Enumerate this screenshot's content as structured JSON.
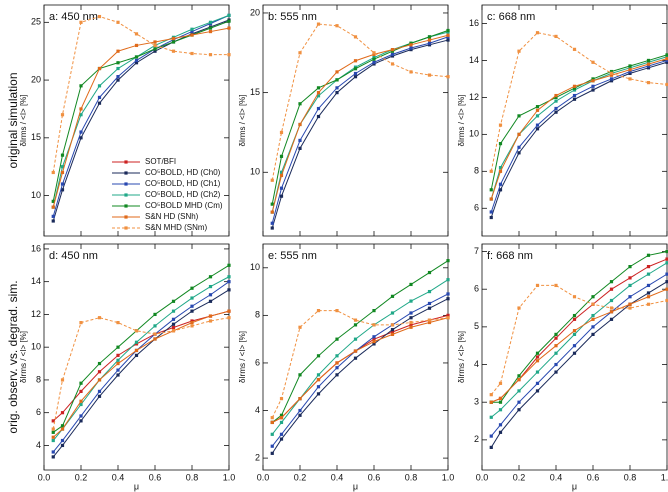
{
  "row_labels": [
    "original simulation",
    "orig. observ. vs. degrad. sim."
  ],
  "legend": [
    {
      "name": "SOT/BFI",
      "color": "#cc2222",
      "dash": false
    },
    {
      "name": "CO⁵BOLD, HD (Ch0)",
      "color": "#1a2a5a",
      "dash": false
    },
    {
      "name": "CO⁵BOLD, HD (Ch1)",
      "color": "#2848b0",
      "dash": false
    },
    {
      "name": "CO⁵BOLD, HD (Ch2)",
      "color": "#20a888",
      "dash": false
    },
    {
      "name": "CO⁵BOLD MHD (Cm)",
      "color": "#118822",
      "dash": false
    },
    {
      "name": "S&N HD (SNh)",
      "color": "#e06a1a",
      "dash": false
    },
    {
      "name": "S&N MHD (SNm)",
      "color": "#f09040",
      "dash": true
    }
  ],
  "chart_data": [
    {
      "type": "line",
      "title": "a: 450 nm",
      "y_label": "δIrms / <I> [%]",
      "x": [
        0.05,
        0.1,
        0.2,
        0.3,
        0.4,
        0.5,
        0.6,
        0.7,
        0.8,
        0.9,
        1.0
      ],
      "xlim": [
        0,
        1
      ],
      "ylim": [
        6.5,
        26.5
      ],
      "xticks": [
        0,
        0.2,
        0.4,
        0.6,
        0.8,
        1.0
      ],
      "yticks": [
        10,
        15,
        20,
        25
      ],
      "series": [
        {
          "color": "#1a2a5a",
          "values": [
            7.8,
            10.5,
            15,
            18,
            20,
            21.5,
            22.5,
            23.3,
            24,
            24.6,
            25.2
          ]
        },
        {
          "color": "#2848b0",
          "values": [
            8.2,
            11,
            15.5,
            18.5,
            20.3,
            21.7,
            22.7,
            23.5,
            24.2,
            24.9,
            25.6
          ]
        },
        {
          "color": "#20a888",
          "values": [
            9,
            12.5,
            17,
            19.5,
            21,
            22,
            23,
            23.7,
            24.4,
            25,
            25.6
          ]
        },
        {
          "color": "#118822",
          "values": [
            9.5,
            13.5,
            19.5,
            21,
            21.5,
            22,
            22.7,
            23.3,
            23.9,
            24.5,
            25.1
          ]
        },
        {
          "color": "#e06a1a",
          "values": [
            9,
            12,
            17.5,
            21,
            22.5,
            23,
            23.3,
            23.6,
            23.9,
            24.2,
            24.5
          ]
        },
        {
          "color": "#f09040",
          "dash": true,
          "values": [
            12,
            17,
            25,
            25.5,
            25,
            24,
            23,
            22.5,
            22.3,
            22.2,
            22.2
          ]
        }
      ]
    },
    {
      "type": "line",
      "title": "b: 555 nm",
      "y_label": "δIrms / <I> [%]",
      "x": [
        0.05,
        0.1,
        0.2,
        0.3,
        0.4,
        0.5,
        0.6,
        0.7,
        0.8,
        0.9,
        1.0
      ],
      "xlim": [
        0,
        1
      ],
      "ylim": [
        6,
        20.5
      ],
      "xticks": [
        0,
        0.2,
        0.4,
        0.6,
        0.8,
        1.0
      ],
      "yticks": [
        10,
        15,
        20
      ],
      "series": [
        {
          "color": "#1a2a5a",
          "values": [
            6.5,
            8.5,
            11.5,
            13.5,
            15,
            16,
            16.8,
            17.3,
            17.7,
            18,
            18.3
          ]
        },
        {
          "color": "#2848b0",
          "values": [
            6.8,
            9,
            12,
            14,
            15.3,
            16.2,
            16.9,
            17.4,
            17.8,
            18.1,
            18.5
          ]
        },
        {
          "color": "#20a888",
          "values": [
            7.5,
            10,
            13,
            14.8,
            15.8,
            16.6,
            17.2,
            17.7,
            18.1,
            18.5,
            18.8
          ]
        },
        {
          "color": "#118822",
          "values": [
            8,
            11,
            14.3,
            15.3,
            15.8,
            16.5,
            17.1,
            17.6,
            18.1,
            18.5,
            18.9
          ]
        },
        {
          "color": "#e06a1a",
          "values": [
            7.5,
            9.8,
            13,
            15,
            16.3,
            17,
            17.4,
            17.7,
            18,
            18.3,
            18.6
          ]
        },
        {
          "color": "#f09040",
          "dash": true,
          "values": [
            9.5,
            12.5,
            17.5,
            19.3,
            19.2,
            18.5,
            17.5,
            16.8,
            16.3,
            16.1,
            16
          ]
        }
      ]
    },
    {
      "type": "line",
      "title": "c: 668 nm",
      "y_label": "δIrms / <I> [%]",
      "x": [
        0.05,
        0.1,
        0.2,
        0.3,
        0.4,
        0.5,
        0.6,
        0.7,
        0.8,
        0.9,
        1.0
      ],
      "xlim": [
        0,
        1
      ],
      "ylim": [
        4.5,
        17
      ],
      "xticks": [
        0,
        0.2,
        0.4,
        0.6,
        0.8,
        1.0
      ],
      "yticks": [
        6,
        8,
        10,
        12,
        14,
        16
      ],
      "series": [
        {
          "color": "#1a2a5a",
          "values": [
            5.5,
            7,
            9,
            10.3,
            11.2,
            11.9,
            12.4,
            12.9,
            13.3,
            13.6,
            13.9
          ]
        },
        {
          "color": "#2848b0",
          "values": [
            5.8,
            7.3,
            9.3,
            10.5,
            11.4,
            12.1,
            12.6,
            13,
            13.4,
            13.7,
            14
          ]
        },
        {
          "color": "#20a888",
          "values": [
            6.5,
            8.2,
            10,
            11,
            11.8,
            12.4,
            12.9,
            13.3,
            13.6,
            13.9,
            14.2
          ]
        },
        {
          "color": "#118822",
          "values": [
            7,
            9.5,
            11,
            11.5,
            12,
            12.5,
            13,
            13.4,
            13.7,
            14,
            14.3
          ]
        },
        {
          "color": "#e06a1a",
          "values": [
            6.5,
            8,
            10,
            11.3,
            12.1,
            12.6,
            12.9,
            13.2,
            13.5,
            13.8,
            14.1
          ]
        },
        {
          "color": "#f09040",
          "dash": true,
          "values": [
            8,
            10.5,
            14.5,
            15.5,
            15.3,
            14.6,
            13.9,
            13.3,
            13,
            12.8,
            12.7
          ]
        }
      ]
    },
    {
      "type": "line",
      "title": "d: 450 nm",
      "y_label": "δIrms / <I> [%]",
      "x_label": "μ",
      "x": [
        0.05,
        0.1,
        0.2,
        0.3,
        0.4,
        0.5,
        0.6,
        0.7,
        0.8,
        0.9,
        1.0
      ],
      "xlim": [
        0,
        1
      ],
      "ylim": [
        2.5,
        16.3
      ],
      "xticks": [
        {
          "value": 0,
          "label": "0.0"
        },
        {
          "value": 0.2,
          "label": "0.2"
        },
        {
          "value": 0.4,
          "label": "0.4"
        },
        {
          "value": 0.6,
          "label": "0.6"
        },
        {
          "value": 0.8,
          "label": "0.8"
        },
        {
          "value": 1.0,
          "label": "1.0"
        }
      ],
      "yticks": [
        4,
        6,
        8,
        10,
        12,
        14,
        16
      ],
      "series": [
        {
          "color": "#cc2222",
          "values": [
            5.5,
            6,
            7.3,
            8.5,
            9.5,
            10.2,
            10.8,
            11.2,
            11.6,
            11.9,
            12.2
          ]
        },
        {
          "color": "#1a2a5a",
          "values": [
            3.3,
            4,
            5.5,
            7,
            8.3,
            9.5,
            10.5,
            11.4,
            12.2,
            12.8,
            13.5
          ]
        },
        {
          "color": "#2848b0",
          "values": [
            3.6,
            4.3,
            5.8,
            7.3,
            8.6,
            9.8,
            10.8,
            11.7,
            12.5,
            13.2,
            14
          ]
        },
        {
          "color": "#20a888",
          "values": [
            4.3,
            5,
            6.5,
            8,
            9.2,
            10.3,
            11.3,
            12.2,
            13,
            13.7,
            14.3
          ]
        },
        {
          "color": "#118822",
          "values": [
            4.8,
            5.2,
            7.8,
            9,
            10,
            11,
            12,
            12.8,
            13.6,
            14.3,
            15
          ]
        },
        {
          "color": "#e06a1a",
          "values": [
            4.5,
            5,
            6.7,
            8,
            9,
            9.8,
            10.5,
            11,
            11.5,
            11.9,
            12.2
          ]
        },
        {
          "color": "#f09040",
          "dash": true,
          "values": [
            5,
            8,
            11.5,
            11.8,
            11.5,
            11,
            10.8,
            11,
            11.3,
            11.6,
            11.8
          ]
        }
      ]
    },
    {
      "type": "line",
      "title": "e: 555 nm",
      "y_label": "δIrms / <I> [%]",
      "x_label": "μ",
      "x": [
        0.05,
        0.1,
        0.2,
        0.3,
        0.4,
        0.5,
        0.6,
        0.7,
        0.8,
        0.9,
        1.0
      ],
      "xlim": [
        0,
        1
      ],
      "ylim": [
        1.5,
        11
      ],
      "xticks": [
        {
          "value": 0,
          "label": "0.0"
        },
        {
          "value": 0.2,
          "label": "0.2"
        },
        {
          "value": 0.4,
          "label": "0.4"
        },
        {
          "value": 0.6,
          "label": "0.6"
        },
        {
          "value": 0.8,
          "label": "0.8"
        },
        {
          "value": 1.0,
          "label": "1.0"
        }
      ],
      "yticks": [
        2,
        4,
        6,
        8,
        10
      ],
      "series": [
        {
          "color": "#cc2222",
          "values": [
            3.5,
            3.7,
            4.5,
            5.3,
            6,
            6.5,
            7,
            7.3,
            7.6,
            7.8,
            8
          ]
        },
        {
          "color": "#1a2a5a",
          "values": [
            2.2,
            2.8,
            3.8,
            4.7,
            5.5,
            6.2,
            6.8,
            7.4,
            7.9,
            8.3,
            8.7
          ]
        },
        {
          "color": "#2848b0",
          "values": [
            2.5,
            3,
            4,
            5,
            5.8,
            6.5,
            7.1,
            7.6,
            8.1,
            8.5,
            8.9
          ]
        },
        {
          "color": "#20a888",
          "values": [
            3,
            3.5,
            4.5,
            5.5,
            6.3,
            7,
            7.6,
            8.1,
            8.6,
            9,
            9.5
          ]
        },
        {
          "color": "#118822",
          "values": [
            3.5,
            3.8,
            5.5,
            6.3,
            7,
            7.6,
            8.2,
            8.8,
            9.3,
            9.8,
            10.3
          ]
        },
        {
          "color": "#e06a1a",
          "values": [
            3.5,
            3.7,
            4.5,
            5.3,
            6,
            6.5,
            6.9,
            7.2,
            7.5,
            7.7,
            7.9
          ]
        },
        {
          "color": "#f09040",
          "dash": true,
          "values": [
            3.7,
            4.5,
            7.5,
            8.2,
            8.2,
            7.8,
            7.6,
            7.6,
            7.7,
            7.8,
            7.9
          ]
        }
      ]
    },
    {
      "type": "line",
      "title": "f: 668 nm",
      "y_label": "δIrms / <I> [%]",
      "x_label": "μ",
      "x": [
        0.05,
        0.1,
        0.2,
        0.3,
        0.4,
        0.5,
        0.6,
        0.7,
        0.8,
        0.9,
        1.0
      ],
      "xlim": [
        0,
        1
      ],
      "ylim": [
        1.2,
        7.2
      ],
      "xticks": [
        {
          "value": 0,
          "label": "0.0"
        },
        {
          "value": 0.2,
          "label": "0.2"
        },
        {
          "value": 0.4,
          "label": "0.4"
        },
        {
          "value": 0.6,
          "label": "0.6"
        },
        {
          "value": 0.8,
          "label": "0.8"
        },
        {
          "value": 1.0,
          "label": "1.0"
        }
      ],
      "yticks": [
        2,
        3,
        4,
        5,
        6,
        7
      ],
      "series": [
        {
          "color": "#cc2222",
          "values": [
            3,
            3.1,
            3.6,
            4.2,
            4.7,
            5.2,
            5.6,
            6,
            6.3,
            6.6,
            6.8
          ]
        },
        {
          "color": "#1a2a5a",
          "values": [
            1.8,
            2.2,
            2.8,
            3.3,
            3.8,
            4.3,
            4.8,
            5.2,
            5.6,
            5.9,
            6.2
          ]
        },
        {
          "color": "#2848b0",
          "values": [
            2.1,
            2.4,
            3,
            3.5,
            4,
            4.5,
            5,
            5.4,
            5.8,
            6.1,
            6.4
          ]
        },
        {
          "color": "#20a888",
          "values": [
            2.6,
            2.8,
            3.3,
            3.8,
            4.3,
            4.8,
            5.3,
            5.7,
            6.1,
            6.4,
            6.7
          ]
        },
        {
          "color": "#118822",
          "values": [
            3,
            3,
            3.7,
            4.3,
            4.8,
            5.3,
            5.8,
            6.2,
            6.6,
            6.9,
            7
          ]
        },
        {
          "color": "#e06a1a",
          "values": [
            3,
            3.1,
            3.6,
            4.1,
            4.5,
            4.9,
            5.2,
            5.4,
            5.6,
            5.8,
            6
          ]
        },
        {
          "color": "#f09040",
          "dash": true,
          "values": [
            3.2,
            3.5,
            5.5,
            6.1,
            6.1,
            5.8,
            5.6,
            5.5,
            5.5,
            5.6,
            5.7
          ]
        }
      ]
    }
  ]
}
